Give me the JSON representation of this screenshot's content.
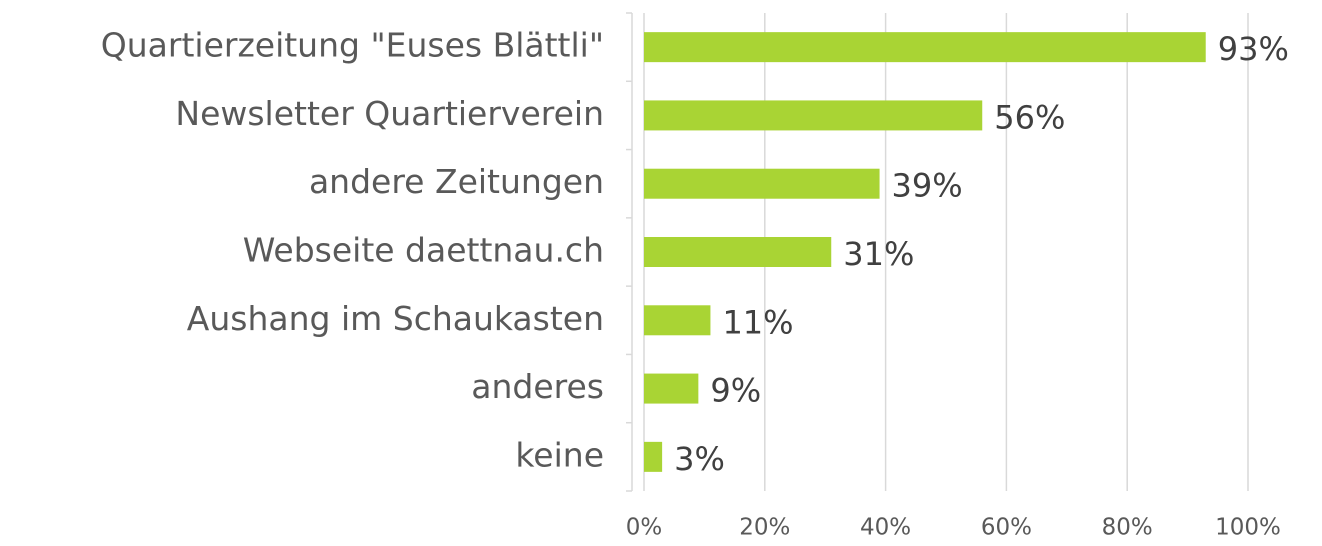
{
  "chart_data": {
    "type": "bar",
    "orientation": "horizontal",
    "categories": [
      "Quartierzeitung \"Euses Blättli\"",
      "Newsletter Quartierverein",
      "andere Zeitungen",
      "Webseite daettnau.ch",
      "Aushang im Schaukasten",
      "anderes",
      "keine"
    ],
    "values": [
      93,
      56,
      39,
      31,
      11,
      9,
      3
    ],
    "value_labels": [
      "93%",
      "56%",
      "39%",
      "31%",
      "11%",
      "9%",
      "3%"
    ],
    "color": "#a9d434",
    "xlim": [
      0,
      100
    ],
    "xticks": [
      {
        "value": 0,
        "label": "0%"
      },
      {
        "value": 20,
        "label": "20%"
      },
      {
        "value": 40,
        "label": "40%"
      },
      {
        "value": 60,
        "label": "60%"
      },
      {
        "value": 80,
        "label": "80%"
      },
      {
        "value": 100,
        "label": "100%"
      }
    ],
    "grid": true
  }
}
